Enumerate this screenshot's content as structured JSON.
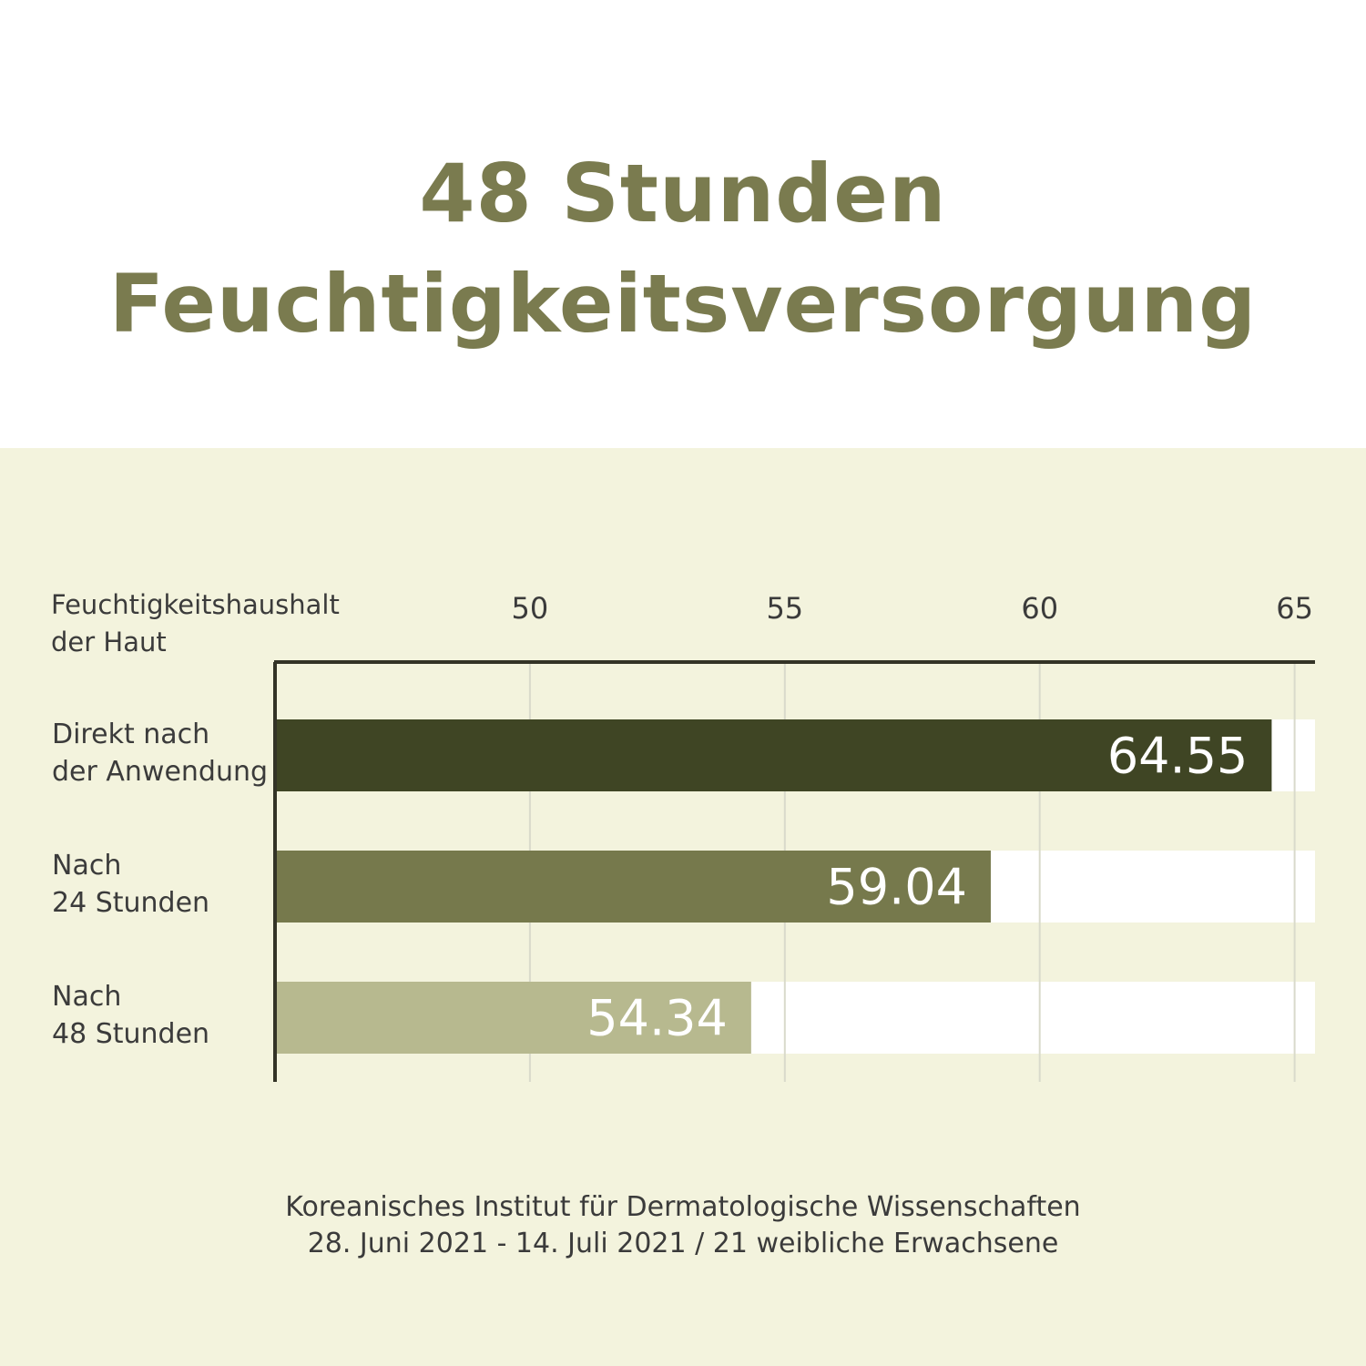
{
  "title": {
    "line1": "48 Stunden",
    "line2": "Feuchtigkeitsversorgung"
  },
  "source": {
    "line1": "Koreanisches Institut für Dermatologische Wissenschaften",
    "line2": "28. Juni 2021 - 14. Juli 2021 / 21 weibliche Erwachsene"
  },
  "colors": {
    "title": "#7a7b4f",
    "panel": "#f3f3dd",
    "track": "#ffffff",
    "gridline": "#d9dacb",
    "axis": "#333326",
    "text": "#3b3b3b",
    "value_label": "#ffffff"
  },
  "chart_data": {
    "type": "bar",
    "orientation": "horizontal",
    "axis_title": [
      "Feuchtigkeitshaushalt",
      "der Haut"
    ],
    "categories": [
      [
        "Direkt nach",
        "der Anwendung"
      ],
      [
        "Nach",
        "24 Stunden"
      ],
      [
        "Nach",
        "48 Stunden"
      ]
    ],
    "values": [
      64.55,
      59.04,
      54.34
    ],
    "value_labels": [
      "64.55",
      "59.04",
      "54.34"
    ],
    "bar_colors": [
      "#3f4524",
      "#76794c",
      "#b7b98f"
    ],
    "ticks": [
      50,
      55,
      60,
      65
    ],
    "xlim": [
      45,
      65.4
    ],
    "tick_position": "top",
    "grid": true
  }
}
